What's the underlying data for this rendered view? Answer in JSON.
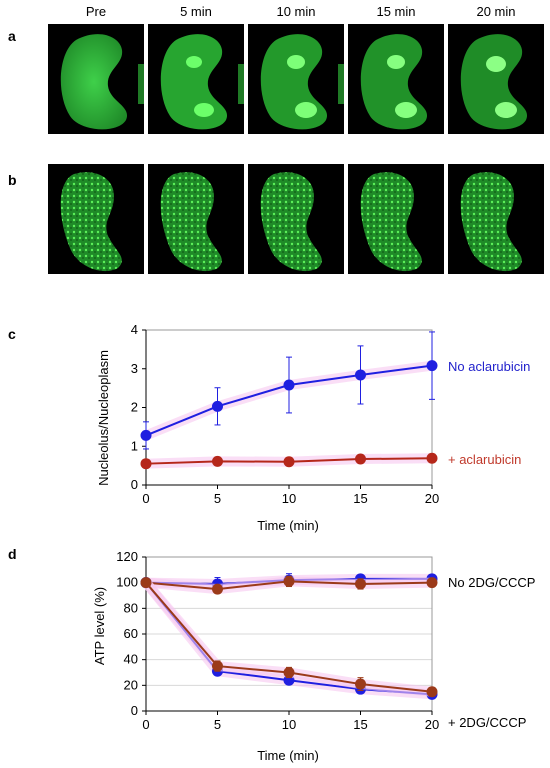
{
  "panels": {
    "a": "a",
    "b": "b",
    "c": "c",
    "d": "d"
  },
  "time_labels": [
    "Pre",
    "5 min",
    "10 min",
    "15 min",
    "20 min"
  ],
  "colors": {
    "blue": "#1f1fe0",
    "red": "#b5271a",
    "brown": "#9b3a1a",
    "label_red": "#c0392b",
    "label_blue": "#2222cc",
    "green": "#2ecc40",
    "highlight": "#f6c8f0"
  },
  "chart_data": [
    {
      "type": "line",
      "panel": "c",
      "xlabel": "Time (min)",
      "ylabel": "Nucleolus/Nucleoplasm",
      "x": [
        0,
        5,
        10,
        15,
        20
      ],
      "xlim": [
        0,
        20
      ],
      "ylim": [
        0,
        4
      ],
      "xticks": [
        0,
        5,
        10,
        15,
        20
      ],
      "yticks": [
        0,
        1,
        2,
        3,
        4
      ],
      "series": [
        {
          "name": "No aclarubicin",
          "color": "#1f1fe0",
          "values": [
            1.28,
            2.03,
            2.58,
            2.84,
            3.08
          ],
          "err": [
            0.35,
            0.48,
            0.72,
            0.75,
            0.87
          ]
        },
        {
          "name": "+ aclarubicin",
          "color": "#b5271a",
          "values": [
            0.55,
            0.61,
            0.6,
            0.67,
            0.69
          ],
          "err": [
            0.08,
            0.1,
            0.08,
            0.1,
            0.09
          ]
        }
      ]
    },
    {
      "type": "line",
      "panel": "d",
      "xlabel": "Time (min)",
      "ylabel": "ATP level (%)",
      "x": [
        0,
        5,
        10,
        15,
        20
      ],
      "xlim": [
        0,
        20
      ],
      "ylim": [
        0,
        120
      ],
      "xticks": [
        0,
        5,
        10,
        15,
        20
      ],
      "yticks": [
        0,
        20,
        40,
        60,
        80,
        100,
        120
      ],
      "grid": true,
      "annotations": [
        "No 2DG/CCCP",
        "+ 2DG/CCCP"
      ],
      "series": [
        {
          "color": "#1f1fe0",
          "values": [
            100,
            99,
            102,
            103,
            103
          ],
          "err": [
            2,
            5,
            5,
            2,
            2
          ]
        },
        {
          "color": "#9b3a1a",
          "values": [
            100,
            95,
            101,
            99,
            100
          ],
          "err": [
            2,
            3,
            4,
            4,
            3
          ]
        },
        {
          "color": "#1f1fe0",
          "values": [
            100,
            31,
            24,
            17,
            13
          ],
          "err": [
            2,
            3,
            2,
            2,
            2
          ]
        },
        {
          "color": "#9b3a1a",
          "values": [
            100,
            35,
            30,
            21,
            15
          ],
          "err": [
            2,
            4,
            4,
            5,
            3
          ]
        }
      ]
    }
  ]
}
